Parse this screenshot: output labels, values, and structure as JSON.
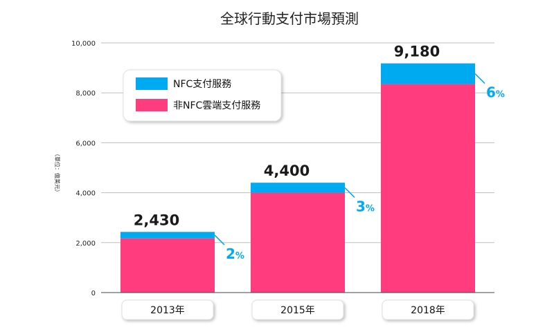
{
  "chart_data": {
    "type": "bar",
    "stacked": true,
    "title": "全球行動支付市場預測",
    "ylabel": "（單位：億美元）",
    "ylim": [
      0,
      10000
    ],
    "yticks": [
      {
        "value": 0,
        "label": "0"
      },
      {
        "value": 2000,
        "label": "2,000"
      },
      {
        "value": 4000,
        "label": "4,000"
      },
      {
        "value": 6000,
        "label": "6,000"
      },
      {
        "value": 8000,
        "label": "8,000"
      },
      {
        "value": 10000,
        "label": "10,000"
      }
    ],
    "categories": [
      "2013年",
      "2015年",
      "2018年"
    ],
    "series": [
      {
        "name": "非NFC雲端支付服務",
        "color": "#ff3c7d",
        "values": [
          2170,
          4000,
          8350
        ]
      },
      {
        "name": "NFC支付服務",
        "color": "#00aaf0",
        "values": [
          260,
          400,
          830
        ]
      }
    ],
    "totals": [
      "2,430",
      "4,400",
      "9,180"
    ],
    "nfc_share": [
      {
        "num": "2",
        "sym": "%"
      },
      {
        "num": "3",
        "sym": "%"
      },
      {
        "num": "6",
        "sym": "%"
      }
    ],
    "legend_position": "top-left"
  }
}
